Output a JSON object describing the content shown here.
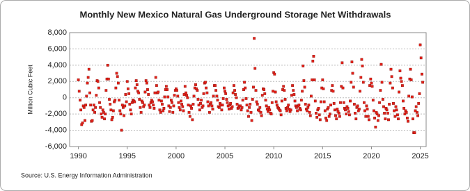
{
  "chart_data": {
    "type": "scatter",
    "title": "Monthly New Mexico Natural Gas Underground Storage Net Withdrawals",
    "y_label": "Million Cubic Feet",
    "source": "Source: U.S. Energy Information Administration",
    "color": "#e32119",
    "grid": true,
    "xlim": [
      1989.1,
      2025.6
    ],
    "xticks": [
      1990,
      1995,
      2000,
      2005,
      2010,
      2015,
      2020,
      2025
    ],
    "ylim": [
      -6000,
      8000
    ],
    "yticks": [
      {
        "value": -6000,
        "label": "-6,000"
      },
      {
        "value": -4000,
        "label": "-4,000"
      },
      {
        "value": -2000,
        "label": "-2,000"
      },
      0,
      {
        "value": 2000,
        "label": "2,000"
      },
      {
        "value": 4000,
        "label": "4,000"
      },
      {
        "value": 6000,
        "label": "6,000"
      },
      {
        "value": 8000,
        "label": "8,000"
      }
    ],
    "x": [
      1990.0,
      1990.08,
      1990.17,
      1990.25,
      1990.33,
      1990.42,
      1990.5,
      1990.58,
      1990.67,
      1990.75,
      1990.83,
      1990.92,
      1991.0,
      1991.08,
      1991.17,
      1991.25,
      1991.33,
      1991.42,
      1991.5,
      1991.58,
      1991.67,
      1991.75,
      1991.83,
      1991.92,
      1992.0,
      1992.08,
      1992.17,
      1992.25,
      1992.33,
      1992.42,
      1992.5,
      1992.58,
      1992.67,
      1992.75,
      1992.83,
      1992.92,
      1993.0,
      1993.08,
      1993.17,
      1993.25,
      1993.33,
      1993.42,
      1993.5,
      1993.58,
      1993.67,
      1993.75,
      1993.83,
      1993.92,
      1994.0,
      1994.08,
      1994.17,
      1994.25,
      1994.33,
      1994.42,
      1994.5,
      1994.58,
      1994.67,
      1994.75,
      1994.83,
      1994.92,
      1995.0,
      1995.08,
      1995.17,
      1995.25,
      1995.33,
      1995.42,
      1995.5,
      1995.58,
      1995.67,
      1995.75,
      1995.83,
      1995.92,
      1996.0,
      1996.08,
      1996.17,
      1996.25,
      1996.33,
      1996.42,
      1996.5,
      1996.58,
      1996.67,
      1996.75,
      1996.83,
      1996.92,
      1997.0,
      1997.08,
      1997.17,
      1997.25,
      1997.33,
      1997.42,
      1997.5,
      1997.58,
      1997.67,
      1997.75,
      1997.83,
      1997.92,
      1998.0,
      1998.08,
      1998.17,
      1998.25,
      1998.33,
      1998.42,
      1998.5,
      1998.58,
      1998.67,
      1998.75,
      1998.83,
      1998.92,
      1999.0,
      1999.08,
      1999.17,
      1999.25,
      1999.33,
      1999.42,
      1999.5,
      1999.58,
      1999.67,
      1999.75,
      1999.83,
      1999.92,
      2000.0,
      2000.08,
      2000.17,
      2000.25,
      2000.33,
      2000.42,
      2000.5,
      2000.58,
      2000.67,
      2000.75,
      2000.83,
      2000.92,
      2001.0,
      2001.08,
      2001.17,
      2001.25,
      2001.33,
      2001.42,
      2001.5,
      2001.58,
      2001.67,
      2001.75,
      2001.83,
      2001.92,
      2002.0,
      2002.08,
      2002.17,
      2002.25,
      2002.33,
      2002.42,
      2002.5,
      2002.58,
      2002.67,
      2002.75,
      2002.83,
      2002.92,
      2003.0,
      2003.08,
      2003.17,
      2003.25,
      2003.33,
      2003.42,
      2003.5,
      2003.58,
      2003.67,
      2003.75,
      2003.83,
      2003.92,
      2004.0,
      2004.08,
      2004.17,
      2004.25,
      2004.33,
      2004.42,
      2004.5,
      2004.58,
      2004.67,
      2004.75,
      2004.83,
      2004.92,
      2005.0,
      2005.08,
      2005.17,
      2005.25,
      2005.33,
      2005.42,
      2005.5,
      2005.58,
      2005.67,
      2005.75,
      2005.83,
      2005.92,
      2006.0,
      2006.08,
      2006.17,
      2006.25,
      2006.33,
      2006.42,
      2006.5,
      2006.58,
      2006.67,
      2006.75,
      2006.83,
      2006.92,
      2007.0,
      2007.08,
      2007.17,
      2007.25,
      2007.33,
      2007.42,
      2007.5,
      2007.58,
      2007.67,
      2007.75,
      2007.83,
      2007.92,
      2008.0,
      2008.08,
      2008.17,
      2008.25,
      2008.33,
      2008.42,
      2008.5,
      2008.58,
      2008.67,
      2008.75,
      2008.83,
      2008.92,
      2009.0,
      2009.08,
      2009.17,
      2009.25,
      2009.33,
      2009.42,
      2009.5,
      2009.58,
      2009.67,
      2009.75,
      2009.83,
      2009.92,
      2010.0,
      2010.08,
      2010.17,
      2010.25,
      2010.33,
      2010.42,
      2010.5,
      2010.58,
      2010.67,
      2010.75,
      2010.83,
      2010.92,
      2011.0,
      2011.08,
      2011.17,
      2011.25,
      2011.33,
      2011.42,
      2011.5,
      2011.58,
      2011.67,
      2011.75,
      2011.83,
      2011.92,
      2012.0,
      2012.08,
      2012.17,
      2012.25,
      2012.33,
      2012.42,
      2012.5,
      2012.58,
      2012.67,
      2012.75,
      2012.83,
      2012.92,
      2013.0,
      2013.08,
      2013.17,
      2013.25,
      2013.33,
      2013.42,
      2013.5,
      2013.58,
      2013.67,
      2013.75,
      2013.83,
      2013.92,
      2014.0,
      2014.08,
      2014.17,
      2014.25,
      2014.33,
      2014.42,
      2014.5,
      2014.58,
      2014.67,
      2014.75,
      2014.83,
      2014.92,
      2015.0,
      2015.08,
      2015.17,
      2015.25,
      2015.33,
      2015.42,
      2015.5,
      2015.58,
      2015.67,
      2015.75,
      2015.83,
      2015.92,
      2016.0,
      2016.08,
      2016.17,
      2016.25,
      2016.33,
      2016.42,
      2016.5,
      2016.58,
      2016.67,
      2016.75,
      2016.83,
      2016.92,
      2017.0,
      2017.08,
      2017.17,
      2017.25,
      2017.33,
      2017.42,
      2017.5,
      2017.58,
      2017.67,
      2017.75,
      2017.83,
      2017.92,
      2018.0,
      2018.08,
      2018.17,
      2018.25,
      2018.33,
      2018.42,
      2018.5,
      2018.58,
      2018.67,
      2018.75,
      2018.83,
      2018.92,
      2019.0,
      2019.08,
      2019.17,
      2019.25,
      2019.33,
      2019.42,
      2019.5,
      2019.58,
      2019.67,
      2019.75,
      2019.83,
      2019.92,
      2020.0,
      2020.08,
      2020.17,
      2020.25,
      2020.33,
      2020.42,
      2020.5,
      2020.58,
      2020.67,
      2020.75,
      2020.83,
      2020.92,
      2021.0,
      2021.08,
      2021.17,
      2021.25,
      2021.33,
      2021.42,
      2021.5,
      2021.58,
      2021.67,
      2021.75,
      2021.83,
      2021.92,
      2022.0,
      2022.08,
      2022.17,
      2022.25,
      2022.33,
      2022.42,
      2022.5,
      2022.58,
      2022.67,
      2022.75,
      2022.83,
      2022.92,
      2023.0,
      2023.08,
      2023.17,
      2023.25,
      2023.33,
      2023.42,
      2023.5,
      2023.58,
      2023.67,
      2023.75,
      2023.83,
      2023.92,
      2024.0,
      2024.08,
      2024.17,
      2024.25,
      2024.33,
      2024.42,
      2024.5,
      2024.58,
      2024.67,
      2024.75,
      2024.83,
      2024.92,
      2025.0,
      2025.08,
      2025.17,
      2025.25
    ],
    "values": [
      2200,
      800,
      -300,
      -1500,
      -3300,
      -3100,
      -1000,
      -1200,
      -2800,
      -900,
      200,
      1800,
      2500,
      3500,
      600,
      -900,
      -2900,
      -2800,
      -1500,
      -900,
      -1800,
      -1200,
      300,
      2100,
      2000,
      1200,
      -600,
      -1200,
      -2000,
      -2400,
      -1500,
      -1800,
      -2600,
      -2000,
      900,
      2300,
      4000,
      2300,
      -200,
      -800,
      -1500,
      -2700,
      -2400,
      -1600,
      -500,
      -300,
      1200,
      3000,
      2600,
      1800,
      -300,
      -1600,
      -2000,
      -4000,
      -900,
      -1200,
      -2200,
      -1000,
      400,
      -500,
      2000,
      1100,
      500,
      -800,
      -1500,
      -2000,
      -600,
      -300,
      -400,
      -500,
      1200,
      2100,
      1600,
      800,
      600,
      -200,
      -1200,
      -1800,
      -400,
      -600,
      -1100,
      -900,
      700,
      2100,
      1800,
      1000,
      400,
      -900,
      -1200,
      -600,
      -300,
      -500,
      -900,
      -1300,
      600,
      2500,
      1500,
      600,
      700,
      -300,
      -1500,
      -1800,
      -400,
      -800,
      -1600,
      -1300,
      100,
      1000,
      1400,
      1000,
      100,
      -1000,
      -1700,
      -1200,
      -300,
      -600,
      -1800,
      -1000,
      300,
      900,
      1100,
      900,
      200,
      -600,
      -1200,
      -1500,
      -400,
      -800,
      -1100,
      -1600,
      400,
      1400,
      600,
      300,
      0,
      -900,
      -1800,
      -2300,
      -1000,
      -1300,
      -2700,
      -800,
      200,
      1200,
      1600,
      1100,
      900,
      -200,
      -900,
      -1500,
      -700,
      -300,
      -1200,
      -1000,
      500,
      1800,
      1900,
      1200,
      600,
      -500,
      -1000,
      -1800,
      -800,
      -600,
      -1000,
      -1400,
      200,
      1500,
      1500,
      900,
      200,
      -300,
      -1100,
      -1200,
      -700,
      -900,
      -1500,
      -900,
      -100,
      1200,
      800,
      500,
      -200,
      -600,
      -1000,
      -1400,
      -900,
      -700,
      -1300,
      -1100,
      600,
      1500,
      900,
      400,
      0,
      -800,
      -1300,
      -1200,
      -1000,
      -1000,
      -1500,
      -1200,
      -300,
      1000,
      1900,
      1200,
      -100,
      -900,
      -1600,
      -2300,
      -1200,
      -800,
      -1800,
      -2800,
      -200,
      1300,
      7300,
      3600,
      900,
      -500,
      -800,
      -1500,
      -1600,
      -1200,
      -1800,
      -2200,
      300,
      1100,
      1000,
      500,
      -300,
      -1000,
      -1400,
      -1700,
      -1200,
      -1500,
      -1900,
      -2000,
      -600,
      800,
      3100,
      2900,
      700,
      -500,
      -900,
      -1200,
      -1300,
      -1500,
      -1600,
      -2100,
      -400,
      1000,
      1400,
      900,
      -200,
      -1300,
      -1600,
      -1200,
      -900,
      -1400,
      -1700,
      -1500,
      300,
      1500,
      900,
      400,
      -400,
      -1000,
      -1200,
      -1600,
      -1000,
      -900,
      -1300,
      -1500,
      -300,
      800,
      3900,
      2100,
      1300,
      -800,
      -1400,
      -1600,
      -1200,
      -900,
      -1800,
      -2200,
      200,
      2200,
      4500,
      5100,
      2200,
      -400,
      -1900,
      -2400,
      -1500,
      -1300,
      -2100,
      -2700,
      -500,
      1200,
      2200,
      1100,
      -500,
      -1600,
      -2500,
      -2800,
      -1400,
      -1200,
      -2300,
      -2000,
      -900,
      900,
      1500,
      800,
      -700,
      -1500,
      -2200,
      -2600,
      -1400,
      -1700,
      -1900,
      -2300,
      -600,
      1400,
      4300,
      1200,
      -600,
      -1300,
      -1500,
      -2000,
      -1100,
      -1300,
      -1700,
      -2100,
      -400,
      1900,
      4400,
      3000,
      1300,
      -800,
      -1900,
      -2600,
      -1200,
      -1000,
      -1600,
      -1400,
      800,
      2500,
      4700,
      3900,
      1900,
      -600,
      -1600,
      -2300,
      -1000,
      -1400,
      -2300,
      -2700,
      1500,
      2300,
      1800,
      1400,
      -300,
      -1600,
      -2500,
      -3600,
      -1800,
      -2000,
      -2800,
      -2200,
      -600,
      900,
      4100,
      1900,
      -200,
      -1100,
      -1900,
      -2600,
      -1300,
      -1500,
      -1900,
      -2700,
      -800,
      1800,
      3500,
      2600,
      1200,
      -700,
      -1600,
      -2300,
      -1100,
      -1500,
      -2100,
      -2600,
      700,
      3300,
      2400,
      2000,
      1500,
      -400,
      -1300,
      -2000,
      -1600,
      -1800,
      -2500,
      -2900,
      200,
      2300,
      3500,
      2200,
      100,
      -2600,
      -4300,
      -4300,
      -1600,
      -1100,
      -1800,
      -2200,
      -700,
      500,
      6500,
      4900,
      2900,
      1900
    ]
  }
}
